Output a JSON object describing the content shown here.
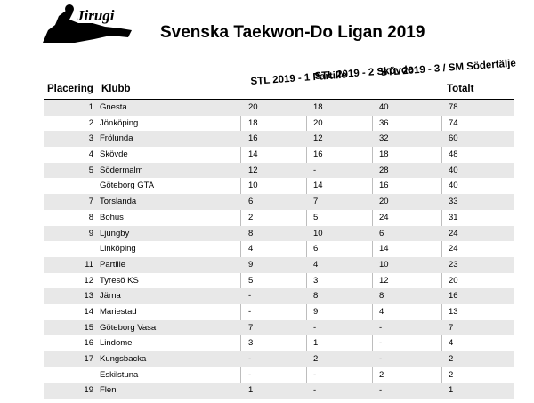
{
  "logo": {
    "text": "Jirugi"
  },
  "title": "Svenska Taekwon-Do Ligan 2019",
  "columns": {
    "placering": "Placering",
    "klubb": "Klubb",
    "stl1": "STL 2019 - 1 Partille",
    "stl2": "STL 2019 - 2 Skövde",
    "stl3": "STL 2019 - 3 / SM Södertälje",
    "totalt": "Totalt"
  },
  "rows": [
    {
      "place": "1",
      "club": "Gnesta",
      "s1": "20",
      "s2": "18",
      "s3": "40",
      "total": "78"
    },
    {
      "place": "2",
      "club": "Jönköping",
      "s1": "18",
      "s2": "20",
      "s3": "36",
      "total": "74"
    },
    {
      "place": "3",
      "club": "Frölunda",
      "s1": "16",
      "s2": "12",
      "s3": "32",
      "total": "60"
    },
    {
      "place": "4",
      "club": "Skövde",
      "s1": "14",
      "s2": "16",
      "s3": "18",
      "total": "48"
    },
    {
      "place": "5",
      "club": "Södermalm",
      "s1": "12",
      "s2": "-",
      "s3": "28",
      "total": "40"
    },
    {
      "place": "",
      "club": "Göteborg GTA",
      "s1": "10",
      "s2": "14",
      "s3": "16",
      "total": "40"
    },
    {
      "place": "7",
      "club": "Torslanda",
      "s1": "6",
      "s2": "7",
      "s3": "20",
      "total": "33"
    },
    {
      "place": "8",
      "club": "Bohus",
      "s1": "2",
      "s2": "5",
      "s3": "24",
      "total": "31"
    },
    {
      "place": "9",
      "club": "Ljungby",
      "s1": "8",
      "s2": "10",
      "s3": "6",
      "total": "24"
    },
    {
      "place": "",
      "club": "Linköping",
      "s1": "4",
      "s2": "6",
      "s3": "14",
      "total": "24"
    },
    {
      "place": "11",
      "club": "Partille",
      "s1": "9",
      "s2": "4",
      "s3": "10",
      "total": "23"
    },
    {
      "place": "12",
      "club": "Tyresö KS",
      "s1": "5",
      "s2": "3",
      "s3": "12",
      "total": "20"
    },
    {
      "place": "13",
      "club": "Järna",
      "s1": "-",
      "s2": "8",
      "s3": "8",
      "total": "16"
    },
    {
      "place": "14",
      "club": "Mariestad",
      "s1": "-",
      "s2": "9",
      "s3": "4",
      "total": "13"
    },
    {
      "place": "15",
      "club": "Göteborg Vasa",
      "s1": "7",
      "s2": "-",
      "s3": "-",
      "total": "7"
    },
    {
      "place": "16",
      "club": "Lindome",
      "s1": "3",
      "s2": "1",
      "s3": "-",
      "total": "4"
    },
    {
      "place": "17",
      "club": "Kungsbacka",
      "s1": "-",
      "s2": "2",
      "s3": "-",
      "total": "2"
    },
    {
      "place": "",
      "club": "Eskilstuna",
      "s1": "-",
      "s2": "-",
      "s3": "2",
      "total": "2"
    },
    {
      "place": "19",
      "club": "Flen",
      "s1": "1",
      "s2": "-",
      "s3": "-",
      "total": "1"
    }
  ]
}
